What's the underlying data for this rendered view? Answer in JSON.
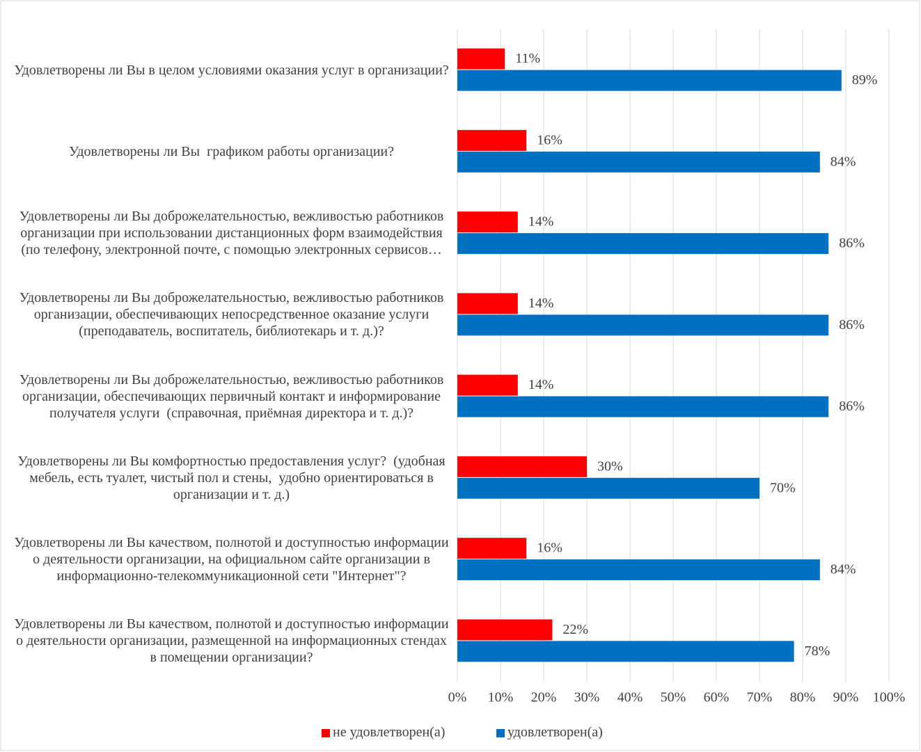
{
  "chart_data": {
    "type": "bar",
    "orientation": "horizontal",
    "categories": [
      "Удовлетворены ли Вы в целом условиями оказания услуг в организации?",
      "Удовлетворены ли Вы  графиком работы организации?",
      "Удовлетворены ли Вы доброжелательностью, вежливостью работников организации при использовании дистанционных форм взаимодействия (по телефону, электронной почте, с помощью электронных сервисов…",
      "Удовлетворены ли Вы доброжелательностью, вежливостью работников организации, обеспечивающих непосредственное оказание услуги  (преподаватель, воспитатель, библиотекарь и т. д.)?",
      "Удовлетворены ли Вы доброжелательностью, вежливостью работников организации, обеспечивающих первичный контакт и информирование получателя услуги  (справочная, приёмная директора и т. д.)?",
      "Удовлетворены ли Вы комфортностью предоставления услуг?  (удобная мебель, есть туалет, чистый пол и стены,  удобно ориентироваться в организации и т. д.)",
      "Удовлетворены ли Вы качеством, полнотой и доступностью информации о деятельности организации, на официальном сайте организации в информационно-телекоммуникационной сети \"Интернет\"?",
      "Удовлетворены ли Вы качеством, полнотой и доступностью информации о деятельности организации, размещенной на информационных стендах в помещении организации?"
    ],
    "series": [
      {
        "name": "не удовлетворен(а)",
        "color": "#ff0000",
        "values": [
          11,
          16,
          14,
          14,
          14,
          30,
          16,
          22
        ],
        "value_labels": [
          "11%",
          "16%",
          "14%",
          "14%",
          "14%",
          "30%",
          "16%",
          "22%"
        ]
      },
      {
        "name": "удовлетворен(а)",
        "color": "#0070c0",
        "values": [
          89,
          84,
          86,
          86,
          86,
          70,
          84,
          78
        ],
        "value_labels": [
          "89%",
          "84%",
          "86%",
          "86%",
          "86%",
          "70%",
          "84%",
          "78%"
        ]
      }
    ],
    "xlim": [
      0,
      100
    ],
    "xticks": [
      {
        "value": 0,
        "label": "0%"
      },
      {
        "value": 10,
        "label": "10%"
      },
      {
        "value": 20,
        "label": "20%"
      },
      {
        "value": 30,
        "label": "30%"
      },
      {
        "value": 40,
        "label": "40%"
      },
      {
        "value": 50,
        "label": "50%"
      },
      {
        "value": 60,
        "label": "60%"
      },
      {
        "value": 70,
        "label": "70%"
      },
      {
        "value": 80,
        "label": "80%"
      },
      {
        "value": 90,
        "label": "90%"
      },
      {
        "value": 100,
        "label": "100%"
      }
    ],
    "grid": true,
    "legend": "bottom"
  }
}
